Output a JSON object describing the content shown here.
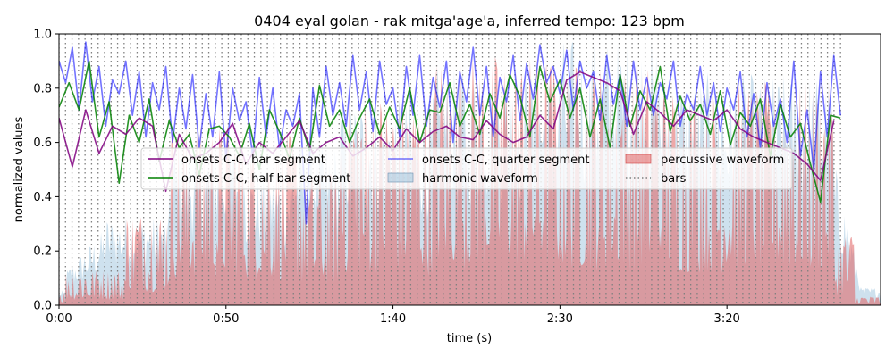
{
  "chart_data": {
    "type": "line",
    "title": "0404 eyal golan - rak mitga'age'a, inferred tempo: 123 bpm",
    "xlabel": "time (s)",
    "ylabel": "normalized values",
    "xlim": [
      0,
      246
    ],
    "ylim": [
      0,
      1.0
    ],
    "x_ticks": [
      {
        "value": 0,
        "label": "0:00"
      },
      {
        "value": 50,
        "label": "0:50"
      },
      {
        "value": 100,
        "label": "1:40"
      },
      {
        "value": 150,
        "label": "2:30"
      },
      {
        "value": 200,
        "label": "3:20"
      }
    ],
    "y_ticks": [
      {
        "value": 0.0,
        "label": "0.0"
      },
      {
        "value": 0.2,
        "label": "0.2"
      },
      {
        "value": 0.4,
        "label": "0.4"
      },
      {
        "value": 0.6,
        "label": "0.6"
      },
      {
        "value": 0.8,
        "label": "0.8"
      },
      {
        "value": 1.0,
        "label": "1.0"
      }
    ],
    "bars_interval_s": 1.95,
    "bars_range": [
      0,
      234
    ],
    "legend_position": "center",
    "colors": {
      "bar_segment": "#800080",
      "half_bar_segment": "#008000",
      "quarter_segment": "#0000ff",
      "harmonic": "#a6c8e0",
      "percussive": "#e06060",
      "bars": "#808080"
    },
    "series": [
      {
        "name": "onsets C-C, bar segment",
        "x": [
          0,
          4,
          8,
          12,
          16,
          20,
          24,
          28,
          32,
          36,
          40,
          44,
          48,
          52,
          56,
          60,
          64,
          68,
          72,
          76,
          80,
          84,
          88,
          92,
          96,
          100,
          104,
          108,
          112,
          116,
          120,
          124,
          128,
          132,
          136,
          140,
          144,
          148,
          152,
          156,
          160,
          164,
          168,
          172,
          176,
          180,
          184,
          188,
          192,
          196,
          200,
          204,
          208,
          212,
          216,
          220,
          224,
          228,
          232
        ],
        "values": [
          0.69,
          0.51,
          0.72,
          0.56,
          0.66,
          0.63,
          0.69,
          0.66,
          0.42,
          0.63,
          0.54,
          0.56,
          0.6,
          0.67,
          0.52,
          0.6,
          0.56,
          0.62,
          0.68,
          0.56,
          0.6,
          0.62,
          0.55,
          0.58,
          0.62,
          0.57,
          0.65,
          0.6,
          0.64,
          0.66,
          0.62,
          0.61,
          0.68,
          0.63,
          0.6,
          0.62,
          0.7,
          0.65,
          0.83,
          0.86,
          0.84,
          0.82,
          0.79,
          0.63,
          0.75,
          0.71,
          0.66,
          0.72,
          0.7,
          0.68,
          0.72,
          0.65,
          0.62,
          0.6,
          0.58,
          0.56,
          0.52,
          0.46,
          0.68
        ]
      },
      {
        "name": "onsets C-C, half bar segment",
        "x": [
          0,
          3,
          6,
          9,
          12,
          15,
          18,
          21,
          24,
          27,
          30,
          33,
          36,
          39,
          42,
          45,
          48,
          51,
          54,
          57,
          60,
          63,
          66,
          69,
          72,
          75,
          78,
          81,
          84,
          87,
          90,
          93,
          96,
          99,
          102,
          105,
          108,
          111,
          114,
          117,
          120,
          123,
          126,
          129,
          132,
          135,
          138,
          141,
          144,
          147,
          150,
          153,
          156,
          159,
          162,
          165,
          168,
          171,
          174,
          177,
          180,
          183,
          186,
          189,
          192,
          195,
          198,
          201,
          204,
          207,
          210,
          213,
          216,
          219,
          222,
          225,
          228,
          231,
          234
        ],
        "values": [
          0.73,
          0.82,
          0.72,
          0.9,
          0.62,
          0.75,
          0.45,
          0.7,
          0.6,
          0.76,
          0.53,
          0.68,
          0.58,
          0.63,
          0.48,
          0.65,
          0.66,
          0.62,
          0.55,
          0.67,
          0.5,
          0.72,
          0.64,
          0.54,
          0.69,
          0.57,
          0.81,
          0.66,
          0.72,
          0.6,
          0.69,
          0.76,
          0.63,
          0.73,
          0.65,
          0.8,
          0.6,
          0.72,
          0.71,
          0.82,
          0.66,
          0.74,
          0.63,
          0.78,
          0.69,
          0.85,
          0.77,
          0.62,
          0.88,
          0.75,
          0.83,
          0.69,
          0.8,
          0.62,
          0.76,
          0.58,
          0.85,
          0.66,
          0.79,
          0.72,
          0.88,
          0.64,
          0.77,
          0.68,
          0.74,
          0.63,
          0.79,
          0.59,
          0.71,
          0.66,
          0.76,
          0.55,
          0.74,
          0.62,
          0.67,
          0.52,
          0.38,
          0.7,
          0.69
        ]
      },
      {
        "name": "onsets C-C, quarter segment",
        "x": [
          0,
          2,
          4,
          6,
          8,
          10,
          12,
          14,
          16,
          18,
          20,
          22,
          24,
          26,
          28,
          30,
          32,
          34,
          36,
          38,
          40,
          42,
          44,
          46,
          48,
          50,
          52,
          54,
          56,
          58,
          60,
          62,
          64,
          66,
          68,
          70,
          72,
          74,
          76,
          78,
          80,
          82,
          84,
          86,
          88,
          90,
          92,
          94,
          96,
          98,
          100,
          102,
          104,
          106,
          108,
          110,
          112,
          114,
          116,
          118,
          120,
          122,
          124,
          126,
          128,
          130,
          132,
          134,
          136,
          138,
          140,
          142,
          144,
          146,
          148,
          150,
          152,
          154,
          156,
          158,
          160,
          162,
          164,
          166,
          168,
          170,
          172,
          174,
          176,
          178,
          180,
          182,
          184,
          186,
          188,
          190,
          192,
          194,
          196,
          198,
          200,
          202,
          204,
          206,
          208,
          210,
          212,
          214,
          216,
          218,
          220,
          222,
          224,
          226,
          228,
          230,
          232,
          234
        ],
        "values": [
          0.9,
          0.82,
          0.95,
          0.72,
          0.97,
          0.75,
          0.88,
          0.66,
          0.83,
          0.78,
          0.9,
          0.7,
          0.86,
          0.62,
          0.82,
          0.72,
          0.88,
          0.6,
          0.8,
          0.65,
          0.85,
          0.58,
          0.78,
          0.62,
          0.86,
          0.54,
          0.8,
          0.68,
          0.75,
          0.55,
          0.84,
          0.62,
          0.8,
          0.58,
          0.72,
          0.66,
          0.78,
          0.3,
          0.8,
          0.62,
          0.88,
          0.7,
          0.82,
          0.66,
          0.92,
          0.72,
          0.86,
          0.64,
          0.9,
          0.74,
          0.8,
          0.62,
          0.88,
          0.7,
          0.92,
          0.66,
          0.84,
          0.73,
          0.9,
          0.6,
          0.86,
          0.75,
          0.95,
          0.7,
          0.88,
          0.62,
          0.84,
          0.75,
          0.92,
          0.68,
          0.89,
          0.76,
          0.96,
          0.82,
          0.88,
          0.78,
          0.94,
          0.72,
          0.9,
          0.8,
          0.86,
          0.68,
          0.92,
          0.74,
          0.85,
          0.66,
          0.9,
          0.72,
          0.84,
          0.7,
          0.82,
          0.76,
          0.9,
          0.66,
          0.78,
          0.72,
          0.88,
          0.7,
          0.82,
          0.64,
          0.8,
          0.72,
          0.86,
          0.62,
          0.78,
          0.58,
          0.82,
          0.66,
          0.76,
          0.6,
          0.9,
          0.55,
          0.72,
          0.5,
          0.86,
          0.62,
          0.92,
          0.7
        ]
      }
    ],
    "areas": [
      {
        "name": "harmonic waveform"
      },
      {
        "name": "percussive waveform"
      }
    ],
    "bars_series": {
      "name": "bars"
    }
  }
}
